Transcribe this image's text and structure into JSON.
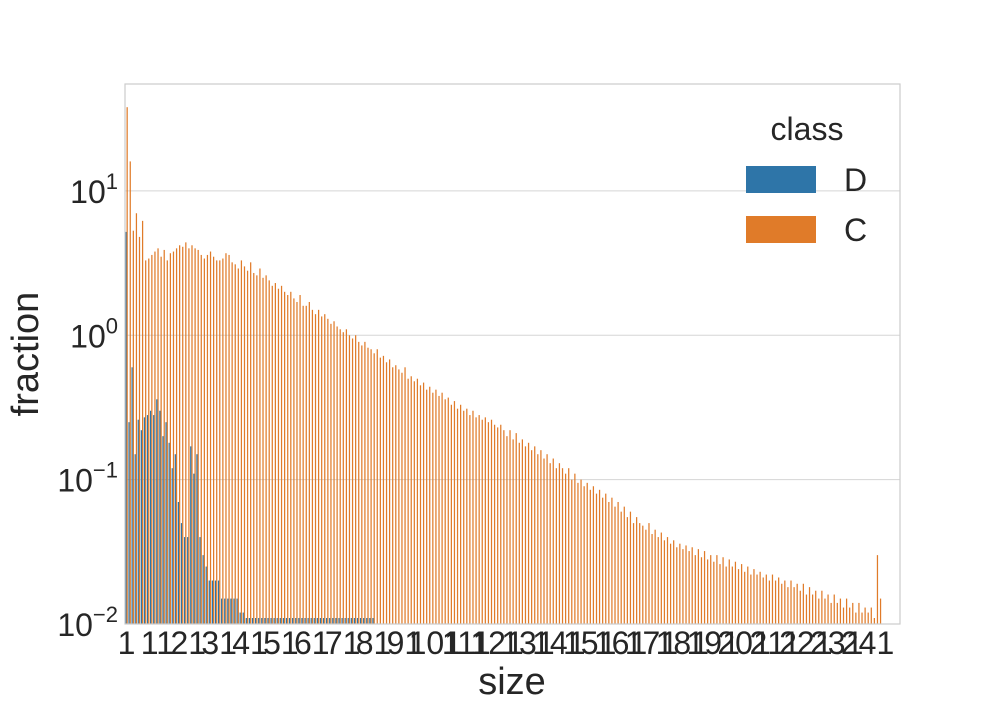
{
  "chart_data": {
    "type": "bar",
    "xlabel": "size",
    "ylabel": "fraction",
    "yscale": "log",
    "ylim": [
      0.01,
      55
    ],
    "ytick_labels": [
      {
        "base": "10",
        "exp": "−2",
        "value": 0.01
      },
      {
        "base": "10",
        "exp": "−1",
        "value": 0.1
      },
      {
        "base": "10",
        "exp": "0",
        "value": 1
      },
      {
        "base": "10",
        "exp": "1",
        "value": 10
      }
    ],
    "xtick_labels": [
      "1",
      "11",
      "21",
      "31",
      "41",
      "51",
      "61",
      "71",
      "81",
      "91",
      "101",
      "111",
      "121",
      "131",
      "141",
      "151",
      "161",
      "171",
      "181",
      "191",
      "201",
      "211",
      "221",
      "231",
      "241"
    ],
    "xtick_start": 1,
    "xtick_step": 10,
    "x_count": 251,
    "grid": true,
    "legend_title": "class",
    "legend_position": "top-right",
    "series": [
      {
        "name": "D",
        "color": "#2e75a8",
        "values": [
          5.2,
          0.25,
          0.6,
          0.15,
          0.26,
          0.22,
          0.27,
          0.28,
          0.3,
          0.28,
          0.36,
          0.3,
          0.2,
          0.25,
          0.18,
          0.12,
          0.15,
          0.07,
          0.05,
          0.04,
          0.04,
          0.17,
          0.11,
          0.15,
          0.04,
          0.03,
          0.025,
          0.02,
          0.02,
          0.02,
          0.02,
          0.015,
          0.015,
          0.015,
          0.015,
          0.015,
          0.015,
          0.012,
          0.012,
          0.011,
          0.011,
          0.011,
          0.011,
          0.011,
          0.011,
          0.011,
          0.011,
          0.011,
          0.011,
          0.011,
          0.011,
          0.011,
          0.011,
          0.011,
          0.011,
          0.011,
          0.011,
          0.011,
          0.011,
          0.011,
          0.011,
          0.011,
          0.011,
          0.011,
          0.011,
          0.011,
          0.011,
          0.011,
          0.011,
          0.011,
          0.011,
          0.011,
          0.011,
          0.011,
          0.011,
          0.011,
          0.011,
          0.011,
          0.011,
          0.011,
          0.011
        ]
      },
      {
        "name": "C",
        "color": "#e07b29",
        "values": [
          38,
          16,
          5.3,
          7.0,
          4.8,
          6.2,
          3.3,
          3.4,
          3.6,
          3.8,
          4.0,
          3.5,
          3.9,
          3.3,
          3.7,
          3.8,
          4.0,
          4.2,
          4.1,
          4.4,
          4.0,
          4.2,
          4.0,
          3.9,
          3.6,
          3.4,
          3.6,
          3.8,
          3.5,
          3.3,
          3.3,
          3.4,
          3.7,
          3.6,
          3.2,
          3.1,
          2.9,
          3.3,
          3.0,
          2.8,
          3.2,
          2.7,
          2.6,
          2.9,
          2.5,
          2.6,
          2.4,
          2.2,
          2.3,
          2.1,
          2.2,
          2.0,
          1.9,
          2.0,
          1.8,
          1.7,
          1.9,
          1.6,
          1.6,
          1.7,
          1.5,
          1.4,
          1.5,
          1.35,
          1.4,
          1.3,
          1.2,
          1.25,
          1.15,
          1.1,
          1.05,
          1.1,
          1.0,
          0.95,
          1.0,
          0.9,
          0.85,
          0.9,
          0.82,
          0.8,
          0.75,
          0.8,
          0.7,
          0.72,
          0.65,
          0.68,
          0.6,
          0.62,
          0.58,
          0.55,
          0.6,
          0.5,
          0.52,
          0.48,
          0.5,
          0.45,
          0.47,
          0.42,
          0.44,
          0.4,
          0.42,
          0.38,
          0.4,
          0.36,
          0.37,
          0.33,
          0.35,
          0.31,
          0.33,
          0.3,
          0.31,
          0.28,
          0.3,
          0.27,
          0.28,
          0.26,
          0.27,
          0.25,
          0.26,
          0.24,
          0.23,
          0.24,
          0.22,
          0.2,
          0.22,
          0.19,
          0.21,
          0.18,
          0.19,
          0.17,
          0.18,
          0.16,
          0.17,
          0.15,
          0.16,
          0.14,
          0.15,
          0.13,
          0.14,
          0.12,
          0.13,
          0.12,
          0.11,
          0.12,
          0.1,
          0.11,
          0.095,
          0.1,
          0.09,
          0.095,
          0.085,
          0.09,
          0.08,
          0.085,
          0.075,
          0.08,
          0.07,
          0.075,
          0.065,
          0.07,
          0.06,
          0.065,
          0.055,
          0.06,
          0.05,
          0.055,
          0.05,
          0.048,
          0.045,
          0.05,
          0.042,
          0.045,
          0.04,
          0.043,
          0.038,
          0.04,
          0.036,
          0.038,
          0.034,
          0.036,
          0.033,
          0.035,
          0.032,
          0.034,
          0.03,
          0.033,
          0.029,
          0.032,
          0.028,
          0.03,
          0.027,
          0.03,
          0.026,
          0.029,
          0.025,
          0.028,
          0.025,
          0.027,
          0.024,
          0.026,
          0.023,
          0.025,
          0.022,
          0.024,
          0.022,
          0.023,
          0.021,
          0.022,
          0.02,
          0.022,
          0.02,
          0.021,
          0.019,
          0.02,
          0.018,
          0.02,
          0.018,
          0.019,
          0.017,
          0.019,
          0.016,
          0.018,
          0.016,
          0.017,
          0.015,
          0.017,
          0.015,
          0.016,
          0.014,
          0.016,
          0.014,
          0.015,
          0.013,
          0.015,
          0.013,
          0.014,
          0.012,
          0.014,
          0.012,
          0.013,
          0.012,
          0.013,
          0.011,
          0.03,
          0.015
        ]
      }
    ]
  }
}
